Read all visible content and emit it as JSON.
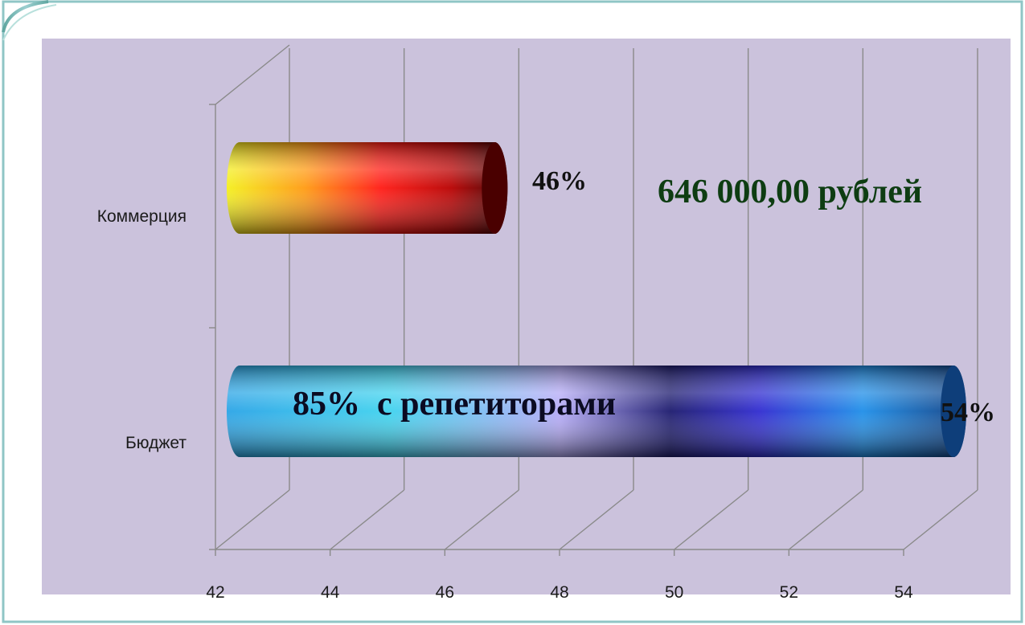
{
  "chart_data": {
    "type": "bar",
    "orientation": "horizontal",
    "style": "3d-cylinder",
    "categories": [
      "Коммерция",
      "Бюджет"
    ],
    "values": [
      46,
      54
    ],
    "data_labels": [
      "46%",
      "54%"
    ],
    "xlim": [
      42,
      54
    ],
    "x_ticks": [
      "42",
      "44",
      "46",
      "48",
      "50",
      "52",
      "54"
    ],
    "grid": true,
    "legend": "none",
    "annotations": {
      "commerce_amount": "646 000,00 рублей",
      "budget_tutors": "85%  с репетиторами"
    },
    "colors": {
      "plot_background": "#cbc2dc",
      "commerce_gradient": [
        "#f2ee1a",
        "#ff8a10",
        "#ff1414",
        "#c00000",
        "#3a0000"
      ],
      "budget_gradient": [
        "#2a9ee0",
        "#44d4f0",
        "#b0a8f4",
        "#1a1870",
        "#1e8ae8",
        "#0e3a80"
      ],
      "annotation_green": "#0e3d12"
    }
  }
}
